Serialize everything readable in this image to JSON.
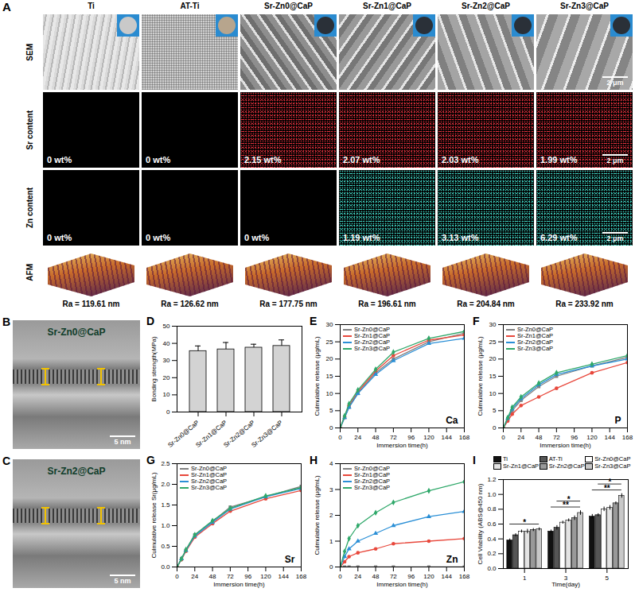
{
  "panel_a": {
    "panel": "A",
    "columns": [
      "Ti",
      "AT-Ti",
      "Sr-Zn0@CaP",
      "Sr-Zn1@CaP",
      "Sr-Zn2@CaP",
      "Sr-Zn3@CaP"
    ],
    "rows": [
      "SEM",
      "Sr content",
      "Zn content",
      "AFM"
    ],
    "sr_content": [
      "0 wt%",
      "0 wt%",
      "2.15 wt%",
      "2.07 wt%",
      "2.03 wt%",
      "1.99 wt%"
    ],
    "zn_content": [
      "0 wt%",
      "0 wt%",
      "0 wt%",
      "1.19 wt%",
      "3.13 wt%",
      "6.29 wt%"
    ],
    "ra": [
      "Ra = 119.61 nm",
      "Ra = 126.62 nm",
      "Ra = 177.75 nm",
      "Ra = 196.61 nm",
      "Ra = 204.84 nm",
      "Ra = 233.92 nm"
    ],
    "scale_bar": "2 μm"
  },
  "panel_b": {
    "panel": "B",
    "title": "Sr-Zn0@CaP",
    "scale_bar": "5 nm"
  },
  "panel_c": {
    "panel": "C",
    "title": "Sr-Zn2@CaP",
    "scale_bar": "5 nm"
  },
  "chart_data": [
    {
      "panel": "D",
      "type": "bar",
      "categories": [
        "Sr-Zn0@CaP",
        "Sr-Zn1@CaP",
        "Sr-Zn2@CaP",
        "Sr-Zn3@CaP"
      ],
      "values": [
        35.5,
        36.5,
        37.5,
        38.5
      ],
      "errors": [
        3,
        4,
        2,
        3.5
      ],
      "color": "#d3d3d3",
      "ylabel": "Bonding strength(MPa)",
      "ylim": [
        0,
        50
      ],
      "yticks": [
        0,
        10,
        20,
        30,
        40,
        50
      ]
    },
    {
      "panel": "E",
      "type": "line",
      "x": [
        0,
        6,
        12,
        24,
        48,
        72,
        120,
        168
      ],
      "xlabel": "Immersion time(h)",
      "ylabel": "Culmulative release (μg/mL)",
      "xlim": [
        0,
        168
      ],
      "xticks": [
        0,
        24,
        48,
        72,
        96,
        120,
        144,
        168
      ],
      "ylim": [
        0,
        30
      ],
      "yticks": [
        0,
        5,
        10,
        15,
        20,
        25,
        30
      ],
      "legend": "top-left",
      "annotations": [
        "Ca"
      ],
      "series": [
        {
          "name": "Sr-Zn0@CaP",
          "color": "#808080",
          "marker": "square",
          "values": [
            0,
            3,
            6,
            10,
            16,
            20,
            25,
            27.5
          ]
        },
        {
          "name": "Sr-Zn1@CaP",
          "color": "#e8483c",
          "marker": "circle",
          "values": [
            0,
            3.2,
            6.5,
            10.5,
            16.5,
            21,
            25.5,
            27
          ]
        },
        {
          "name": "Sr-Zn2@CaP",
          "color": "#2a8fd6",
          "marker": "triangle",
          "values": [
            0,
            3,
            6,
            10,
            15.5,
            19.5,
            24.5,
            26
          ]
        },
        {
          "name": "Sr-Zn3@CaP",
          "color": "#2fa86a",
          "marker": "diamond",
          "values": [
            0,
            3.5,
            7,
            11,
            17,
            22,
            26,
            28
          ]
        }
      ]
    },
    {
      "panel": "F",
      "type": "line",
      "x": [
        0,
        6,
        12,
        24,
        48,
        72,
        120,
        168
      ],
      "xlabel": "Immersion time(h)",
      "ylabel": "Culmulative release (μg/mL)",
      "xlim": [
        0,
        168
      ],
      "xticks": [
        0,
        24,
        48,
        72,
        96,
        120,
        144,
        168
      ],
      "ylim": [
        0,
        30
      ],
      "yticks": [
        0,
        5,
        10,
        15,
        20,
        25,
        30
      ],
      "legend": "top-left",
      "annotations": [
        "P"
      ],
      "series": [
        {
          "name": "Sr-Zn0@CaP",
          "color": "#808080",
          "marker": "square",
          "values": [
            0,
            2.5,
            5,
            8,
            12,
            15,
            18,
            20.5
          ]
        },
        {
          "name": "Sr-Zn1@CaP",
          "color": "#e8483c",
          "marker": "circle",
          "values": [
            0,
            2,
            4,
            6.5,
            9,
            11.5,
            16,
            19
          ]
        },
        {
          "name": "Sr-Zn2@CaP",
          "color": "#2a8fd6",
          "marker": "triangle",
          "values": [
            0,
            2.8,
            5.5,
            8.5,
            12.5,
            15.5,
            18,
            20
          ]
        },
        {
          "name": "Sr-Zn3@CaP",
          "color": "#2fa86a",
          "marker": "diamond",
          "values": [
            0,
            3,
            6,
            9,
            13,
            16,
            18.5,
            21
          ]
        }
      ]
    },
    {
      "panel": "G",
      "type": "line",
      "x": [
        0,
        6,
        12,
        24,
        48,
        72,
        120,
        168
      ],
      "xlabel": "Immersion time(h)",
      "ylabel": "Culmulative release Sr(μg/mL)",
      "xlim": [
        0,
        168
      ],
      "xticks": [
        0,
        24,
        48,
        72,
        96,
        120,
        144,
        168
      ],
      "ylim": [
        0,
        2.5
      ],
      "yticks": [
        {
          "value": 0,
          "label": "0.0"
        },
        0.5,
        {
          "value": 1,
          "label": "1.0"
        },
        1.5,
        {
          "value": 2,
          "label": "2.0"
        },
        2.5
      ],
      "legend": "top-left",
      "annotations": [
        "Sr"
      ],
      "series": [
        {
          "name": "Sr-Zn0@CaP",
          "color": "#808080",
          "marker": "square",
          "values": [
            0,
            0.2,
            0.4,
            0.78,
            1.1,
            1.45,
            1.7,
            1.95
          ]
        },
        {
          "name": "Sr-Zn1@CaP",
          "color": "#e8483c",
          "marker": "circle",
          "values": [
            0,
            0.18,
            0.38,
            0.72,
            1.05,
            1.35,
            1.65,
            1.85
          ]
        },
        {
          "name": "Sr-Zn2@CaP",
          "color": "#2a8fd6",
          "marker": "triangle",
          "values": [
            0,
            0.2,
            0.4,
            0.75,
            1.08,
            1.4,
            1.7,
            1.9
          ]
        },
        {
          "name": "Sr-Zn3@CaP",
          "color": "#2fa86a",
          "marker": "diamond",
          "values": [
            0,
            0.2,
            0.42,
            0.78,
            1.12,
            1.42,
            1.72,
            1.92
          ]
        }
      ]
    },
    {
      "panel": "H",
      "type": "line",
      "x": [
        0,
        6,
        12,
        24,
        48,
        72,
        120,
        168
      ],
      "xlabel": "Immersion time(h)",
      "ylabel": "Culmulative release (μg/mL)",
      "xlim": [
        0,
        168
      ],
      "xticks": [
        0,
        24,
        48,
        72,
        96,
        120,
        144,
        168
      ],
      "ylim": [
        0,
        4
      ],
      "yticks": [
        0,
        1,
        2,
        3,
        4
      ],
      "legend": "top-left",
      "annotations": [
        "Zn"
      ],
      "series": [
        {
          "name": "Sr-Zn0@CaP",
          "color": "#808080",
          "marker": "square",
          "values": [
            0,
            0,
            0,
            0,
            0,
            0,
            0,
            0
          ]
        },
        {
          "name": "Sr-Zn1@CaP",
          "color": "#e8483c",
          "marker": "circle",
          "values": [
            0,
            0.2,
            0.4,
            0.55,
            0.7,
            0.9,
            1.0,
            1.1
          ]
        },
        {
          "name": "Sr-Zn2@CaP",
          "color": "#2a8fd6",
          "marker": "triangle",
          "values": [
            0,
            0.4,
            0.7,
            1.0,
            1.3,
            1.6,
            1.95,
            2.15
          ]
        },
        {
          "name": "Sr-Zn3@CaP",
          "color": "#2fa86a",
          "marker": "diamond",
          "values": [
            0,
            0.6,
            1.1,
            1.6,
            2.1,
            2.5,
            2.95,
            3.3
          ]
        }
      ]
    },
    {
      "panel": "I",
      "type": "bar",
      "categories": [
        "1",
        "3",
        "5"
      ],
      "xlabel": "Time(day)",
      "ylabel": "Cell Viability (ABS@450 nm)",
      "ylim": [
        0,
        1.2
      ],
      "yticks": [
        {
          "value": 0,
          "label": "0.0"
        },
        0.2,
        0.4,
        0.6,
        0.8,
        {
          "value": 1,
          "label": "1.0"
        },
        1.2
      ],
      "legend": "top",
      "series": [
        {
          "name": "Ti",
          "color": "#111111",
          "values": [
            0.38,
            0.5,
            0.7
          ],
          "errors": [
            0.02,
            0.02,
            0.03
          ]
        },
        {
          "name": "AT-Ti",
          "color": "#555555",
          "values": [
            0.45,
            0.55,
            0.72
          ],
          "errors": [
            0.02,
            0.03,
            0.02
          ]
        },
        {
          "name": "Sr-Zn0@CaP",
          "color": "#ffffff",
          "values": [
            0.5,
            0.62,
            0.8
          ],
          "errors": [
            0.02,
            0.02,
            0.03
          ]
        },
        {
          "name": "Sr-Zn1@CaP",
          "color": "#e3e3e3",
          "values": [
            0.5,
            0.65,
            0.82
          ],
          "errors": [
            0.03,
            0.02,
            0.03
          ]
        },
        {
          "name": "Sr-Zn2@CaP",
          "color": "#999999",
          "values": [
            0.52,
            0.68,
            0.88
          ],
          "errors": [
            0.02,
            0.03,
            0.02
          ]
        },
        {
          "name": "Sr-Zn3@CaP",
          "color": "#c8c8c8",
          "values": [
            0.53,
            0.75,
            0.98
          ],
          "errors": [
            0.02,
            0.03,
            0.03
          ]
        }
      ],
      "annotations": [
        {
          "text": "*",
          "category": "1"
        },
        {
          "text": "**",
          "category": "3"
        },
        {
          "text": "*",
          "category": "3"
        },
        {
          "text": "**",
          "category": "5"
        },
        {
          "text": "*",
          "category": "5"
        }
      ]
    }
  ]
}
